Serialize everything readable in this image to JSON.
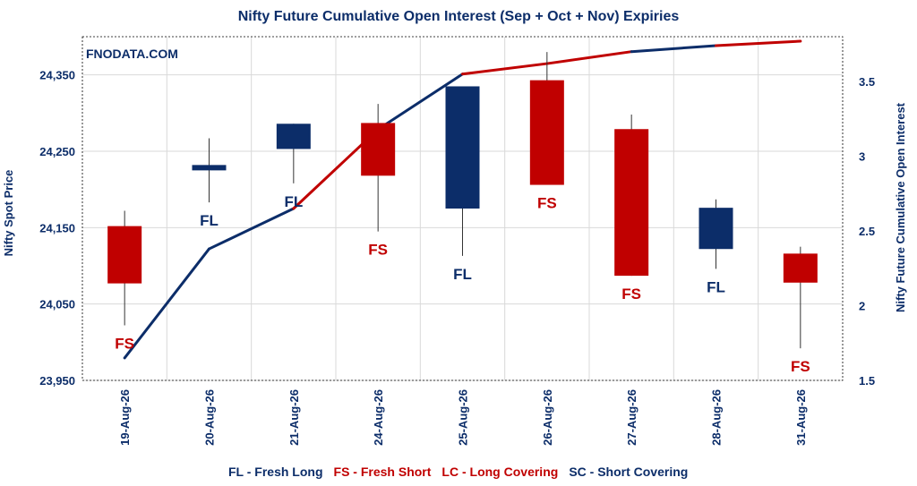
{
  "chart_data": {
    "type": "candlestick-line",
    "title": "Nifty Future Cumulative Open Interest (Sep + Oct + Nov) Expiries",
    "watermark": "FNODATA.COM",
    "ylabel_left": "Nifty Spot Price",
    "ylabel_right": "Nifty Future Cumulative Open Interest",
    "y_left_ticks": [
      "23,950",
      "24,050",
      "24,150",
      "24,250",
      "24,350"
    ],
    "y_left_range": [
      23950,
      24400
    ],
    "y_right_ticks": [
      "1.5",
      "2",
      "2.5",
      "3",
      "3.5"
    ],
    "y_right_range": [
      1.5,
      3.8
    ],
    "categories": [
      "19-Aug-26",
      "20-Aug-26",
      "21-Aug-26",
      "24-Aug-26",
      "25-Aug-26",
      "26-Aug-26",
      "27-Aug-26",
      "28-Aug-26",
      "31-Aug-26"
    ],
    "candles": [
      {
        "open": 24077,
        "close": 24152,
        "high": 24172,
        "low": 24022,
        "signal": "FS"
      },
      {
        "open": 24227,
        "close": 24232,
        "high": 24267,
        "low": 24183,
        "signal": "FL"
      },
      {
        "open": 24253,
        "close": 24286,
        "high": 24286,
        "low": 24208,
        "signal": "FL"
      },
      {
        "open": 24218,
        "close": 24287,
        "high": 24312,
        "low": 24145,
        "signal": "FS"
      },
      {
        "open": 24175,
        "close": 24335,
        "high": 24335,
        "low": 24113,
        "signal": "FL"
      },
      {
        "open": 24206,
        "close": 24343,
        "high": 24380,
        "low": 24206,
        "signal": "FS"
      },
      {
        "open": 24087,
        "close": 24279,
        "high": 24298,
        "low": 24087,
        "signal": "FS"
      },
      {
        "open": 24122,
        "close": 24176,
        "high": 24187,
        "low": 24096,
        "signal": "FL"
      },
      {
        "open": 24078,
        "close": 24116,
        "high": 24125,
        "low": 23992,
        "signal": "FS"
      }
    ],
    "oi_series": {
      "name": "Nifty Future Cumulative Open Interest",
      "x": [
        0,
        1,
        2,
        3,
        4,
        5,
        6,
        7,
        8
      ],
      "values": [
        1.65,
        2.38,
        2.65,
        3.18,
        3.55,
        3.62,
        3.7,
        3.74,
        3.77
      ]
    },
    "legend_items": [
      {
        "label": "FL - Fresh Long",
        "color": "#0c2d69"
      },
      {
        "label": "FS - Fresh Short",
        "color": "#c00000"
      },
      {
        "label": "LC - Long Covering",
        "color": "#c00000"
      },
      {
        "label": "SC - Short Covering",
        "color": "#0c2d69"
      }
    ],
    "colors": {
      "fresh_long": "#0c2d69",
      "fresh_short": "#c00000",
      "title": "#0c2d69",
      "axis_text": "#0c2d69",
      "grid": "#d9d9d9"
    },
    "grid": true,
    "legend_position": "bottom"
  }
}
